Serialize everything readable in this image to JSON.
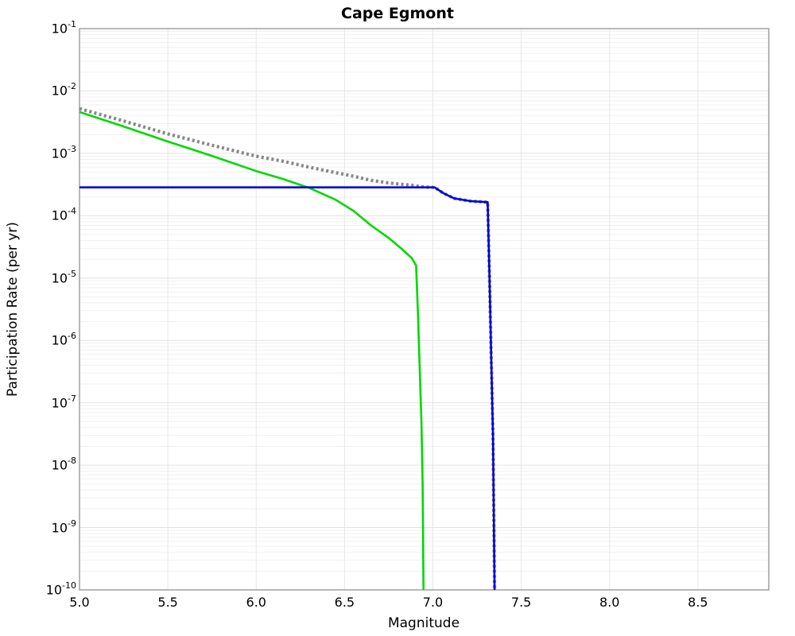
{
  "title": "Cape Egmont",
  "chart_data": {
    "type": "line",
    "title": "Cape Egmont",
    "xlabel": "Magnitude",
    "ylabel": "Participation Rate (per yr)",
    "xlim": [
      5.0,
      8.901
    ],
    "ylim_log10": [
      -10,
      -1
    ],
    "x_ticks": [
      5.0,
      5.5,
      6.0,
      6.5,
      7.0,
      7.5,
      8.0,
      8.5
    ],
    "y_tick_exponents": [
      -1,
      -2,
      -3,
      -4,
      -5,
      -6,
      -7,
      -8,
      -9,
      -10
    ],
    "grid": true,
    "legend_position": "none",
    "colors": {
      "border": "#999999",
      "grid_major": "#e2e2e2",
      "grid_minor": "#f0f0f0",
      "grid_vertical": "#e7e7e7",
      "background": "#ffffff"
    },
    "series": [
      {
        "name": "green-solid-line",
        "color": "#00d800",
        "style": "solid",
        "width": 2.6,
        "points": [
          [
            5.0,
            0.0046
          ],
          [
            5.25,
            0.0027
          ],
          [
            5.5,
            0.00155
          ],
          [
            5.75,
            0.00091
          ],
          [
            6.0,
            0.00052
          ],
          [
            6.15,
            0.00039
          ],
          [
            6.3,
            0.00028
          ],
          [
            6.45,
            0.00018
          ],
          [
            6.55,
            0.00012
          ],
          [
            6.65,
            7e-05
          ],
          [
            6.75,
            4.4e-05
          ],
          [
            6.82,
            3e-05
          ],
          [
            6.88,
            2.1e-05
          ],
          [
            6.905,
            1.6e-05
          ],
          [
            6.915,
            3e-06
          ],
          [
            6.925,
            4e-07
          ],
          [
            6.935,
            5e-08
          ],
          [
            6.942,
            5e-09
          ],
          [
            6.947,
            1e-10
          ]
        ]
      },
      {
        "name": "gray-dotted-line",
        "color": "#878787",
        "style": "dotted",
        "width": 4.2,
        "points": [
          [
            5.0,
            0.0052
          ],
          [
            5.25,
            0.0033
          ],
          [
            5.5,
            0.00205
          ],
          [
            5.75,
            0.00135
          ],
          [
            6.0,
            0.0009
          ],
          [
            6.15,
            0.00075
          ],
          [
            6.3,
            0.0006
          ],
          [
            6.45,
            0.00049
          ],
          [
            6.55,
            0.00043
          ],
          [
            6.65,
            0.00037
          ],
          [
            6.75,
            0.000335
          ],
          [
            6.82,
            0.00032
          ],
          [
            6.88,
            0.000308
          ],
          [
            6.905,
            0.0003
          ],
          [
            6.95,
            0.000288
          ],
          [
            7.01,
            0.000285
          ],
          [
            7.06,
            0.00023
          ],
          [
            7.12,
            0.00019
          ],
          [
            7.21,
            0.000172
          ],
          [
            7.31,
            0.000165
          ],
          [
            7.32,
            1.2e-05
          ],
          [
            7.33,
            6e-07
          ],
          [
            7.34,
            3e-08
          ],
          [
            7.349,
            1e-10
          ]
        ]
      },
      {
        "name": "blue-solid-line",
        "color": "#0000dd",
        "style": "solid",
        "width": 2.6,
        "points": [
          [
            5.0,
            0.000285
          ],
          [
            7.01,
            0.000285
          ],
          [
            7.06,
            0.00023
          ],
          [
            7.12,
            0.00019
          ],
          [
            7.21,
            0.000172
          ],
          [
            7.31,
            0.000165
          ],
          [
            7.32,
            1.2e-05
          ],
          [
            7.33,
            6e-07
          ],
          [
            7.34,
            3e-08
          ],
          [
            7.349,
            1e-10
          ]
        ]
      }
    ]
  }
}
